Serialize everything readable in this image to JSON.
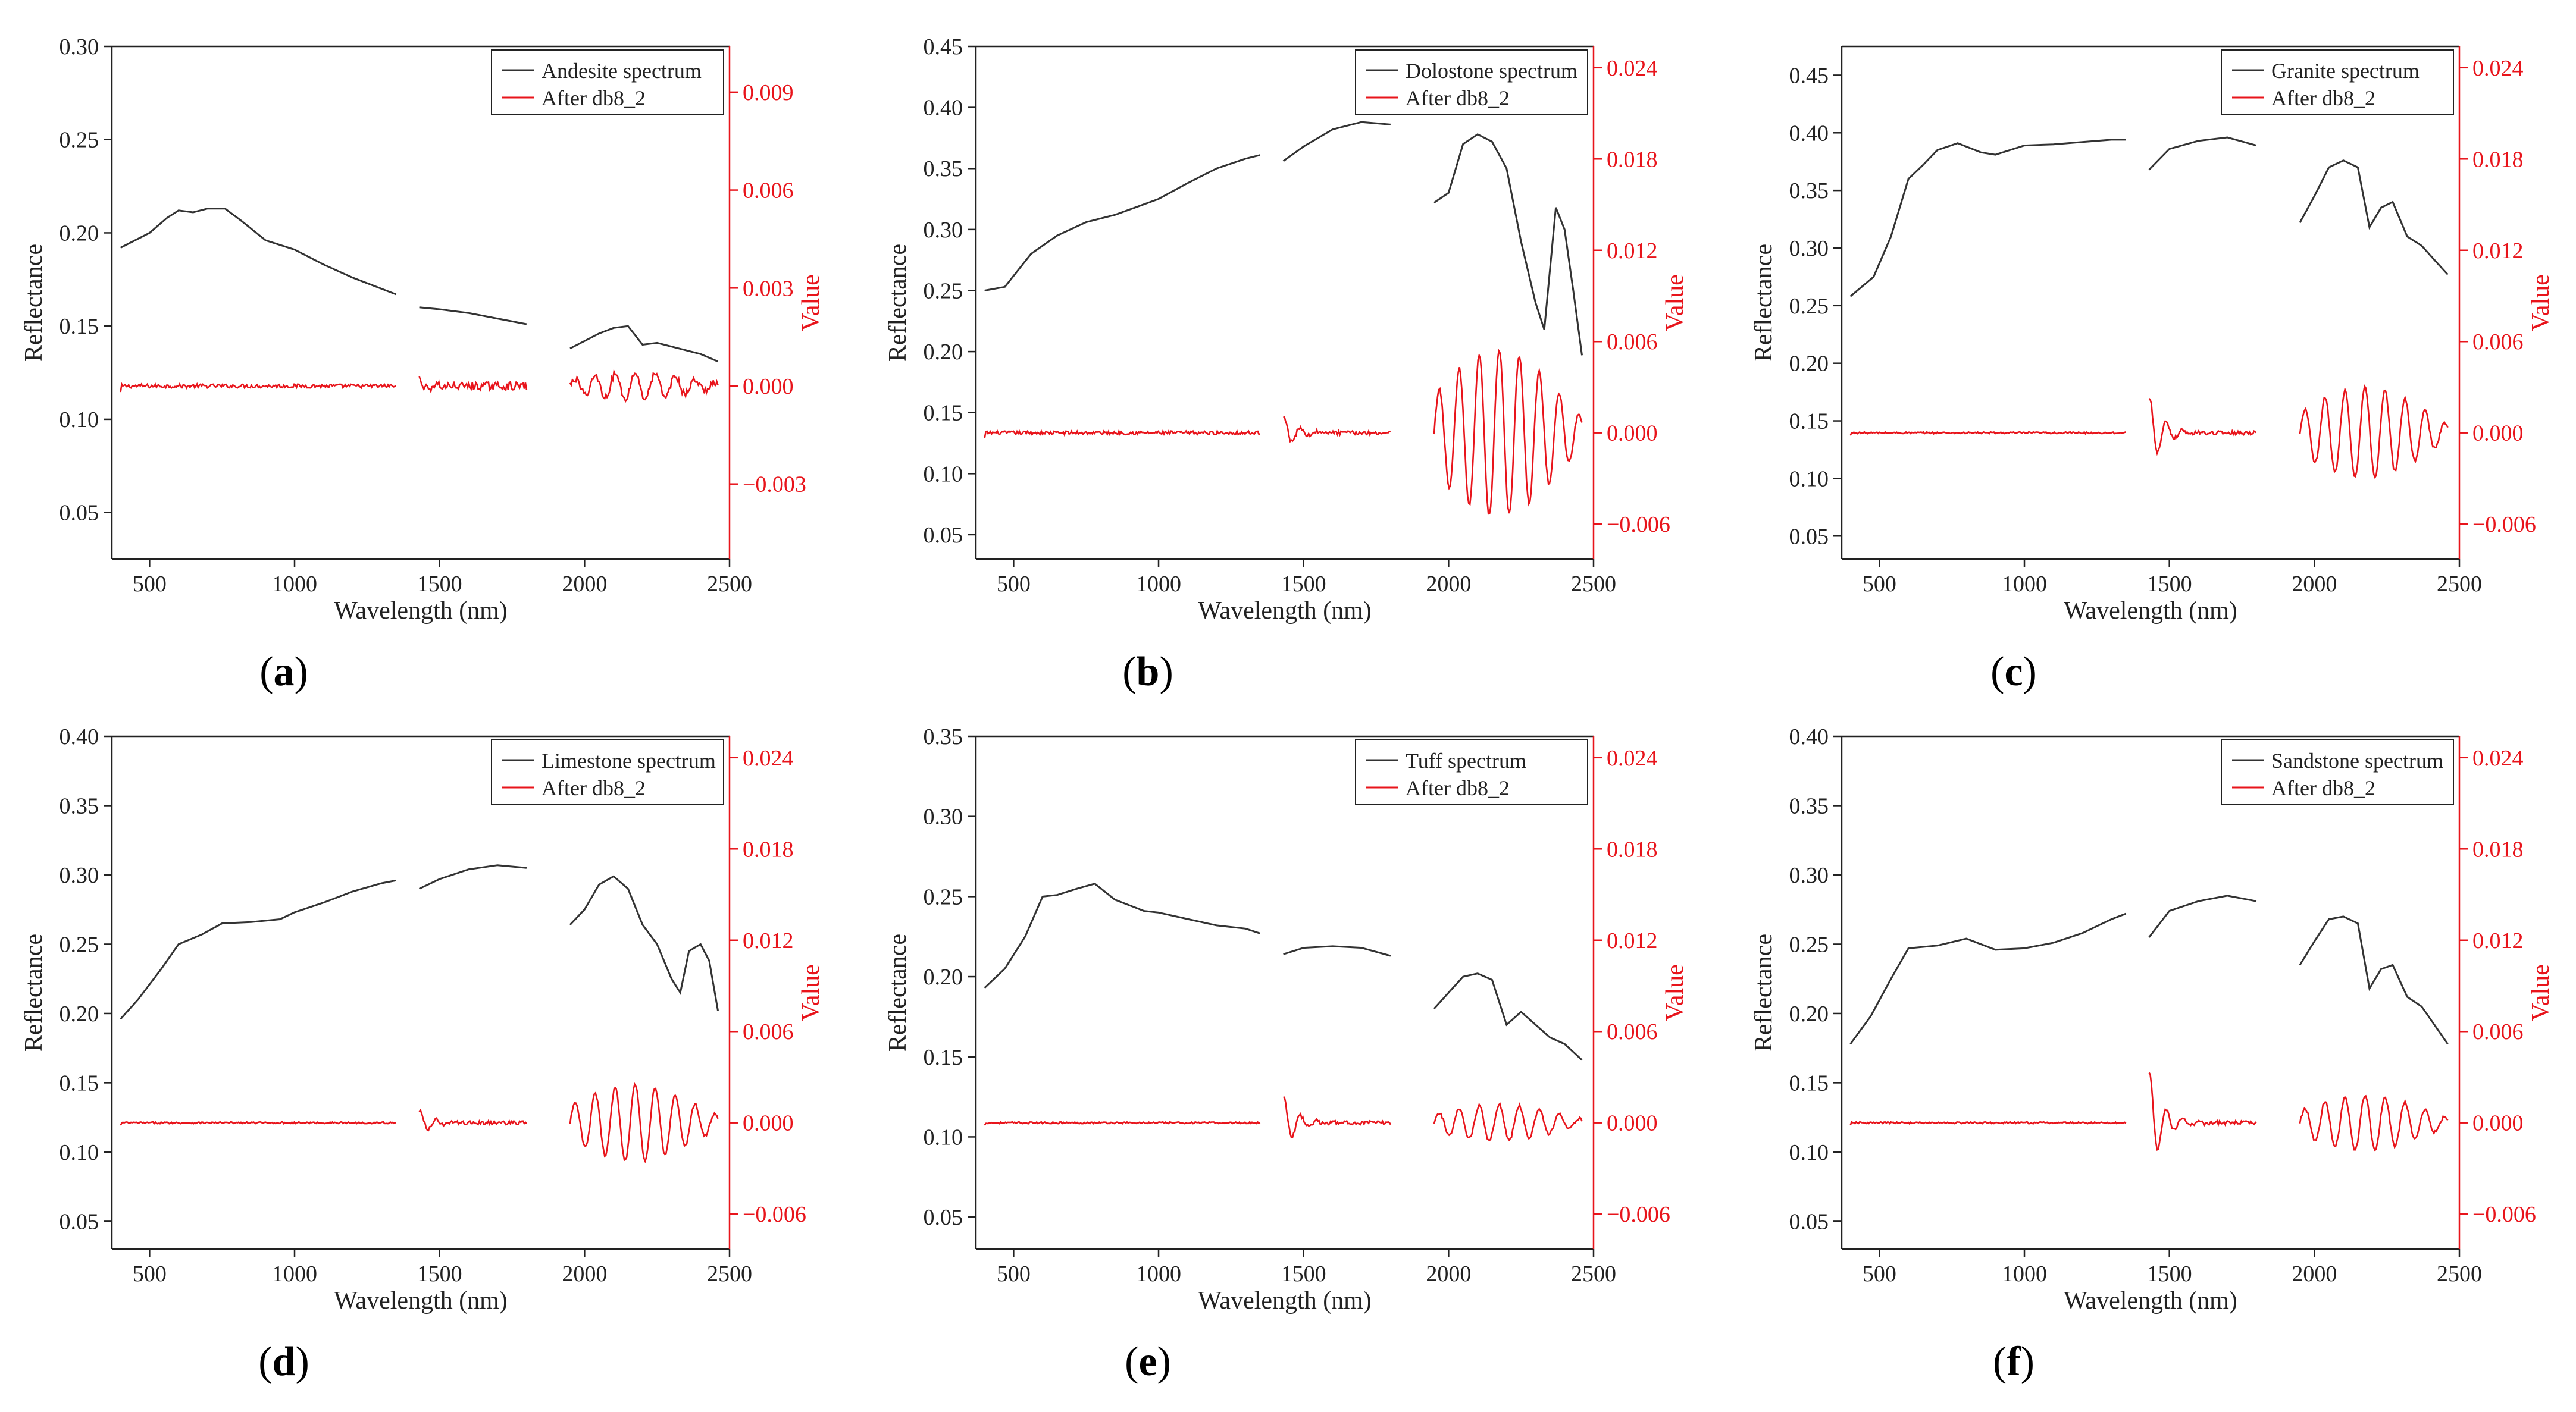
{
  "figure": {
    "colors": {
      "spectrum": "#333333",
      "transform": "#e8141b",
      "axis": "#222222"
    },
    "legend_transform_label": "After db8_2",
    "xlabel": "Wavelength (nm)",
    "ylabel_left": "Reflectance",
    "ylabel_right": "Value",
    "xlim": [
      370,
      2500
    ],
    "xticks": [
      500,
      1000,
      1500,
      2000,
      2500
    ],
    "segments": [
      [
        400,
        1350
      ],
      [
        1430,
        1800
      ],
      [
        1950,
        2460
      ]
    ]
  },
  "chart_data": [
    {
      "type": "line",
      "panel_label": "(a)",
      "panel_letter": "a",
      "legend": [
        "Andesite spectrum",
        "After db8_2"
      ],
      "ylim": [
        0.025,
        0.3
      ],
      "yticks": [
        0.05,
        0.1,
        0.15,
        0.2,
        0.25,
        0.3
      ],
      "y2lim": [
        -0.0053,
        0.0104
      ],
      "y2ticks": [
        -0.003,
        0.0,
        0.003,
        0.006,
        0.009
      ],
      "spectrum": [
        [
          400,
          0.192
        ],
        [
          450,
          0.196
        ],
        [
          500,
          0.2
        ],
        [
          560,
          0.208
        ],
        [
          600,
          0.212
        ],
        [
          650,
          0.211
        ],
        [
          700,
          0.213
        ],
        [
          760,
          0.213
        ],
        [
          820,
          0.206
        ],
        [
          900,
          0.196
        ],
        [
          1000,
          0.191
        ],
        [
          1100,
          0.183
        ],
        [
          1200,
          0.176
        ],
        [
          1300,
          0.17
        ],
        [
          1350,
          0.167
        ],
        [
          1430,
          0.16
        ],
        [
          1500,
          0.159
        ],
        [
          1600,
          0.157
        ],
        [
          1700,
          0.154
        ],
        [
          1800,
          0.151
        ],
        [
          1950,
          0.138
        ],
        [
          2000,
          0.142
        ],
        [
          2050,
          0.146
        ],
        [
          2100,
          0.149
        ],
        [
          2150,
          0.15
        ],
        [
          2200,
          0.14
        ],
        [
          2250,
          0.141
        ],
        [
          2300,
          0.139
        ],
        [
          2350,
          0.137
        ],
        [
          2400,
          0.135
        ],
        [
          2460,
          0.131
        ]
      ],
      "transform_amp": [
        0.0001,
        0.0002,
        0.0004
      ]
    },
    {
      "type": "line",
      "panel_label": "(b)",
      "panel_letter": "b",
      "legend": [
        "Dolostone spectrum",
        "After db8_2"
      ],
      "ylim": [
        0.03,
        0.45
      ],
      "yticks": [
        0.05,
        0.1,
        0.15,
        0.2,
        0.25,
        0.3,
        0.35,
        0.4,
        0.45
      ],
      "y2lim": [
        -0.0083,
        0.0254
      ],
      "y2ticks": [
        -0.006,
        0.0,
        0.006,
        0.012,
        0.018,
        0.024
      ],
      "spectrum": [
        [
          400,
          0.25
        ],
        [
          470,
          0.253
        ],
        [
          560,
          0.28
        ],
        [
          650,
          0.295
        ],
        [
          750,
          0.306
        ],
        [
          850,
          0.312
        ],
        [
          1000,
          0.325
        ],
        [
          1100,
          0.338
        ],
        [
          1200,
          0.35
        ],
        [
          1300,
          0.358
        ],
        [
          1350,
          0.361
        ],
        [
          1430,
          0.356
        ],
        [
          1500,
          0.368
        ],
        [
          1600,
          0.382
        ],
        [
          1700,
          0.388
        ],
        [
          1800,
          0.386
        ],
        [
          1950,
          0.322
        ],
        [
          2000,
          0.33
        ],
        [
          2050,
          0.37
        ],
        [
          2100,
          0.378
        ],
        [
          2150,
          0.372
        ],
        [
          2200,
          0.35
        ],
        [
          2250,
          0.29
        ],
        [
          2300,
          0.24
        ],
        [
          2330,
          0.218
        ],
        [
          2370,
          0.318
        ],
        [
          2400,
          0.3
        ],
        [
          2430,
          0.25
        ],
        [
          2460,
          0.197
        ]
      ],
      "transform_amp": [
        0.0002,
        0.0012,
        0.0055
      ]
    },
    {
      "type": "line",
      "panel_label": "(c)",
      "panel_letter": "c",
      "legend": [
        "Granite spectrum",
        "After db8_2"
      ],
      "ylim": [
        0.03,
        0.475
      ],
      "yticks": [
        0.05,
        0.1,
        0.15,
        0.2,
        0.25,
        0.3,
        0.35,
        0.4,
        0.45
      ],
      "y2lim": [
        -0.0083,
        0.0254
      ],
      "y2ticks": [
        -0.006,
        0.0,
        0.006,
        0.012,
        0.018,
        0.024
      ],
      "spectrum": [
        [
          400,
          0.258
        ],
        [
          480,
          0.275
        ],
        [
          540,
          0.31
        ],
        [
          600,
          0.36
        ],
        [
          650,
          0.372
        ],
        [
          700,
          0.385
        ],
        [
          770,
          0.391
        ],
        [
          850,
          0.383
        ],
        [
          900,
          0.381
        ],
        [
          1000,
          0.389
        ],
        [
          1100,
          0.39
        ],
        [
          1200,
          0.392
        ],
        [
          1300,
          0.394
        ],
        [
          1350,
          0.394
        ],
        [
          1430,
          0.368
        ],
        [
          1500,
          0.386
        ],
        [
          1600,
          0.393
        ],
        [
          1700,
          0.396
        ],
        [
          1800,
          0.389
        ],
        [
          1950,
          0.322
        ],
        [
          2000,
          0.345
        ],
        [
          2050,
          0.37
        ],
        [
          2100,
          0.376
        ],
        [
          2150,
          0.37
        ],
        [
          2190,
          0.318
        ],
        [
          2230,
          0.335
        ],
        [
          2270,
          0.34
        ],
        [
          2320,
          0.31
        ],
        [
          2370,
          0.302
        ],
        [
          2420,
          0.288
        ],
        [
          2460,
          0.277
        ]
      ],
      "transform_amp": [
        0.0001,
        0.0025,
        0.003
      ]
    },
    {
      "type": "line",
      "panel_label": "(d)",
      "panel_letter": "d",
      "legend": [
        "Limestone spectrum",
        "After db8_2"
      ],
      "ylim": [
        0.03,
        0.4
      ],
      "yticks": [
        0.05,
        0.1,
        0.15,
        0.2,
        0.25,
        0.3,
        0.35,
        0.4
      ],
      "y2lim": [
        -0.0083,
        0.0254
      ],
      "y2ticks": [
        -0.006,
        0.0,
        0.006,
        0.012,
        0.018,
        0.024
      ],
      "spectrum": [
        [
          400,
          0.196
        ],
        [
          460,
          0.21
        ],
        [
          540,
          0.232
        ],
        [
          600,
          0.25
        ],
        [
          680,
          0.257
        ],
        [
          750,
          0.265
        ],
        [
          850,
          0.266
        ],
        [
          950,
          0.268
        ],
        [
          1000,
          0.273
        ],
        [
          1100,
          0.28
        ],
        [
          1200,
          0.288
        ],
        [
          1300,
          0.294
        ],
        [
          1350,
          0.296
        ],
        [
          1430,
          0.29
        ],
        [
          1500,
          0.297
        ],
        [
          1600,
          0.304
        ],
        [
          1700,
          0.307
        ],
        [
          1800,
          0.305
        ],
        [
          1950,
          0.264
        ],
        [
          2000,
          0.275
        ],
        [
          2050,
          0.293
        ],
        [
          2100,
          0.299
        ],
        [
          2150,
          0.29
        ],
        [
          2200,
          0.264
        ],
        [
          2250,
          0.25
        ],
        [
          2300,
          0.225
        ],
        [
          2330,
          0.215
        ],
        [
          2360,
          0.245
        ],
        [
          2400,
          0.25
        ],
        [
          2430,
          0.238
        ],
        [
          2460,
          0.202
        ]
      ],
      "transform_amp": [
        0.0001,
        0.0008,
        0.0025
      ]
    },
    {
      "type": "line",
      "panel_label": "(e)",
      "panel_letter": "e",
      "legend": [
        "Tuff spectrum",
        "After db8_2"
      ],
      "ylim": [
        0.03,
        0.35
      ],
      "yticks": [
        0.05,
        0.1,
        0.15,
        0.2,
        0.25,
        0.3,
        0.35
      ],
      "y2lim": [
        -0.0083,
        0.0254
      ],
      "y2ticks": [
        -0.006,
        0.0,
        0.006,
        0.012,
        0.018,
        0.024
      ],
      "spectrum": [
        [
          400,
          0.193
        ],
        [
          470,
          0.205
        ],
        [
          540,
          0.225
        ],
        [
          600,
          0.25
        ],
        [
          650,
          0.251
        ],
        [
          720,
          0.255
        ],
        [
          780,
          0.258
        ],
        [
          850,
          0.248
        ],
        [
          950,
          0.241
        ],
        [
          1000,
          0.24
        ],
        [
          1100,
          0.236
        ],
        [
          1200,
          0.232
        ],
        [
          1300,
          0.23
        ],
        [
          1350,
          0.227
        ],
        [
          1430,
          0.214
        ],
        [
          1500,
          0.218
        ],
        [
          1600,
          0.219
        ],
        [
          1700,
          0.218
        ],
        [
          1800,
          0.213
        ],
        [
          1950,
          0.18
        ],
        [
          2000,
          0.19
        ],
        [
          2050,
          0.2
        ],
        [
          2100,
          0.202
        ],
        [
          2150,
          0.198
        ],
        [
          2200,
          0.17
        ],
        [
          2250,
          0.178
        ],
        [
          2300,
          0.17
        ],
        [
          2350,
          0.162
        ],
        [
          2400,
          0.158
        ],
        [
          2460,
          0.148
        ]
      ],
      "transform_amp": [
        0.0001,
        0.0018,
        0.0012
      ]
    },
    {
      "type": "line",
      "panel_label": "(f)",
      "panel_letter": "f",
      "legend": [
        "Sandstone spectrum",
        "After db8_2"
      ],
      "ylim": [
        0.03,
        0.4
      ],
      "yticks": [
        0.05,
        0.1,
        0.15,
        0.2,
        0.25,
        0.3,
        0.35,
        0.4
      ],
      "y2lim": [
        -0.0083,
        0.0254
      ],
      "y2ticks": [
        -0.006,
        0.0,
        0.006,
        0.012,
        0.018,
        0.024
      ],
      "spectrum": [
        [
          400,
          0.178
        ],
        [
          470,
          0.198
        ],
        [
          540,
          0.225
        ],
        [
          600,
          0.247
        ],
        [
          700,
          0.249
        ],
        [
          800,
          0.254
        ],
        [
          900,
          0.246
        ],
        [
          1000,
          0.247
        ],
        [
          1100,
          0.251
        ],
        [
          1200,
          0.258
        ],
        [
          1300,
          0.268
        ],
        [
          1350,
          0.272
        ],
        [
          1430,
          0.255
        ],
        [
          1500,
          0.274
        ],
        [
          1600,
          0.281
        ],
        [
          1700,
          0.285
        ],
        [
          1800,
          0.281
        ],
        [
          1950,
          0.235
        ],
        [
          2000,
          0.252
        ],
        [
          2050,
          0.268
        ],
        [
          2100,
          0.27
        ],
        [
          2150,
          0.265
        ],
        [
          2190,
          0.218
        ],
        [
          2230,
          0.232
        ],
        [
          2270,
          0.235
        ],
        [
          2320,
          0.212
        ],
        [
          2370,
          0.205
        ],
        [
          2420,
          0.19
        ],
        [
          2460,
          0.178
        ]
      ],
      "transform_amp": [
        0.0001,
        0.0035,
        0.0018
      ]
    }
  ]
}
